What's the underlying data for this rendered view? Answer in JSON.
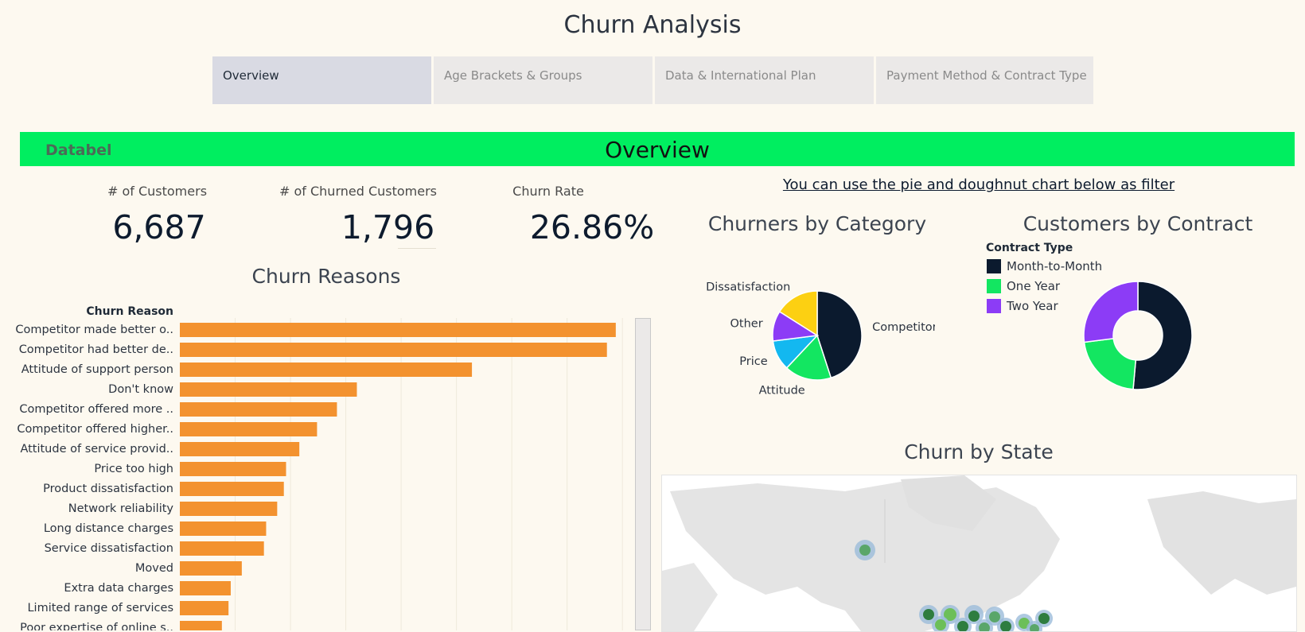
{
  "page": {
    "title": "Churn Analysis"
  },
  "tabs": [
    {
      "label": "Overview",
      "active": true
    },
    {
      "label": "Age Brackets & Groups",
      "active": false
    },
    {
      "label": "Data & International Plan",
      "active": false
    },
    {
      "label": "Payment Method & Contract Type",
      "active": false
    }
  ],
  "banner": {
    "brand": "Databel",
    "title": "Overview",
    "color": "#00ee60"
  },
  "kpis": [
    {
      "label": "# of Customers",
      "value": "6,687"
    },
    {
      "label": "# of Churned Customers",
      "value": "1,796"
    },
    {
      "label": "Churn Rate",
      "value": "26.86%"
    }
  ],
  "filter_note": "You can use the pie and doughnut chart below as filter",
  "chart_data": [
    {
      "type": "bar",
      "orientation": "horizontal",
      "title": "Churn Reasons",
      "ylabel": "Churn Reason",
      "xlabel": "",
      "color": "#f3922f",
      "grid": true,
      "xlim": [
        0,
        210
      ],
      "categories": [
        "Competitor made better o..",
        "Competitor had better de..",
        "Attitude of support person",
        "Don't know",
        "Competitor offered more ..",
        "Competitor offered higher..",
        "Attitude of service provid..",
        "Price too high",
        "Product dissatisfaction",
        "Network reliability",
        "Long distance charges",
        "Service dissatisfaction",
        "Moved",
        "Extra data charges",
        "Limited range of services",
        "Poor expertise of online s.."
      ],
      "values": [
        197,
        193,
        132,
        80,
        71,
        62,
        54,
        48,
        47,
        44,
        39,
        38,
        28,
        23,
        22,
        19
      ]
    },
    {
      "type": "pie",
      "title": "Churners by Category",
      "categories": [
        "Competitor",
        "Attitude",
        "Price",
        "Other",
        "Dissatisfaction"
      ],
      "values": [
        45.0,
        17.0,
        11.0,
        11.0,
        16.0
      ],
      "colors": [
        "#0b1a2e",
        "#13e661",
        "#13b8f0",
        "#8c3cf6",
        "#fcd012"
      ]
    },
    {
      "type": "pie",
      "subtype": "donut",
      "title": "Customers by Contract",
      "legend_title": "Contract Type",
      "legend_position": "left",
      "categories": [
        "Month-to-Month",
        "One Year",
        "Two Year"
      ],
      "values": [
        51.4,
        21.6,
        27.0
      ],
      "colors": [
        "#0b1a2e",
        "#13e661",
        "#8c3cf6"
      ]
    }
  ],
  "map": {
    "title": "Churn by State"
  }
}
